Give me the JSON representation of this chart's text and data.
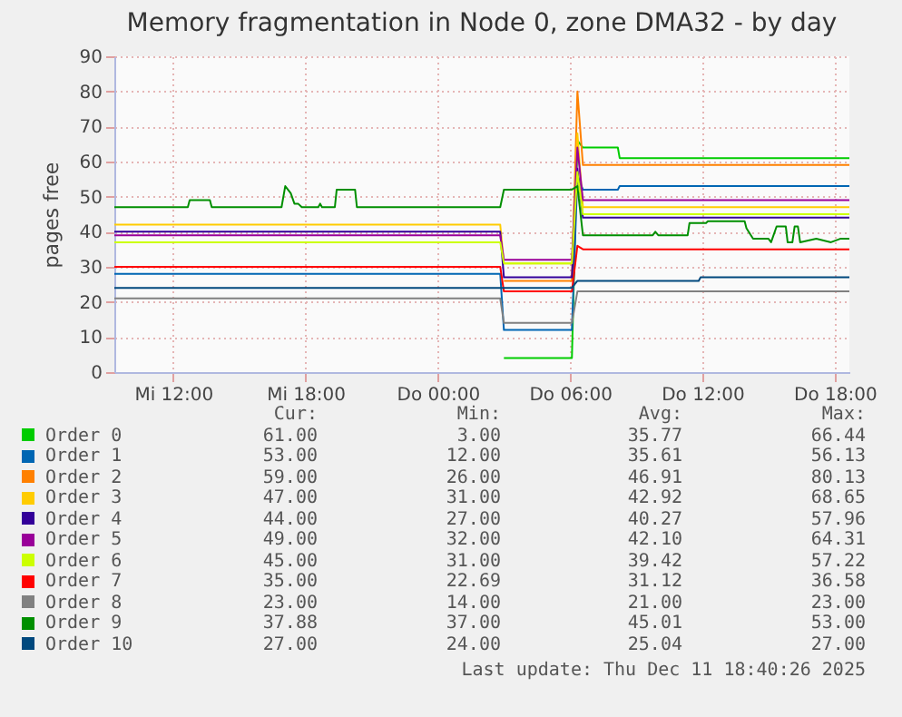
{
  "chart_data": {
    "type": "line",
    "title": "Memory fragmentation in Node 0, zone DMA32 - by day",
    "ylabel": "pages free",
    "xlim": [
      "2025-12-10T09:20",
      "2025-12-11T18:40"
    ],
    "xticks": [
      {
        "value": "2025-12-10T12:00",
        "label": "Mi 12:00"
      },
      {
        "value": "2025-12-10T18:00",
        "label": "Mi 18:00"
      },
      {
        "value": "2025-12-11T00:00",
        "label": "Do 00:00"
      },
      {
        "value": "2025-12-11T06:00",
        "label": "Do 06:00"
      },
      {
        "value": "2025-12-11T12:00",
        "label": "Do 12:00"
      },
      {
        "value": "2025-12-11T18:00",
        "label": "Do 18:00"
      }
    ],
    "ylim": [
      0,
      90
    ],
    "yticks": [
      0,
      10,
      20,
      30,
      40,
      50,
      60,
      70,
      80,
      90
    ],
    "grid": true,
    "legend": "bottom",
    "marker": "none",
    "line_style": "solid",
    "series": [
      {
        "name": "Order 0",
        "color": "#00cc00",
        "x": [
          "2025-12-11T03:00",
          "2025-12-11T06:05",
          "2025-12-11T06:20",
          "2025-12-11T06:35",
          "2025-12-11T08:10",
          "2025-12-11T08:15",
          "2025-12-11T18:40"
        ],
        "values": [
          4,
          4,
          66,
          64,
          64,
          61,
          61
        ]
      },
      {
        "name": "Order 1",
        "color": "#0066b3",
        "x": [
          "2025-12-10T09:20",
          "2025-12-11T02:50",
          "2025-12-11T03:00",
          "2025-12-11T06:05",
          "2025-12-11T06:20",
          "2025-12-11T06:35",
          "2025-12-11T08:10",
          "2025-12-11T08:15",
          "2025-12-11T18:40"
        ],
        "values": [
          28,
          28,
          12,
          12,
          56,
          52,
          52,
          53,
          53
        ]
      },
      {
        "name": "Order 2",
        "color": "#ff8000",
        "x": [
          "2025-12-11T03:00",
          "2025-12-11T06:05",
          "2025-12-11T06:20",
          "2025-12-11T06:35",
          "2025-12-11T18:40"
        ],
        "values": [
          26,
          26,
          80,
          59,
          59
        ]
      },
      {
        "name": "Order 3",
        "color": "#ffcc00",
        "x": [
          "2025-12-10T09:20",
          "2025-12-11T02:50",
          "2025-12-11T03:00",
          "2025-12-11T06:05",
          "2025-12-11T06:20",
          "2025-12-11T06:35",
          "2025-12-11T18:40"
        ],
        "values": [
          42,
          42,
          31,
          31,
          68,
          47,
          47
        ]
      },
      {
        "name": "Order 4",
        "color": "#330099",
        "x": [
          "2025-12-10T09:20",
          "2025-12-11T02:50",
          "2025-12-11T03:00",
          "2025-12-11T06:05",
          "2025-12-11T06:20",
          "2025-12-11T06:35",
          "2025-12-11T18:40"
        ],
        "values": [
          40,
          40,
          27,
          27,
          58,
          44,
          44
        ]
      },
      {
        "name": "Order 5",
        "color": "#990099",
        "x": [
          "2025-12-10T09:20",
          "2025-12-11T02:50",
          "2025-12-11T03:00",
          "2025-12-11T06:05",
          "2025-12-11T06:20",
          "2025-12-11T06:35",
          "2025-12-11T18:40"
        ],
        "values": [
          39,
          39,
          32,
          32,
          64,
          49,
          49
        ]
      },
      {
        "name": "Order 6",
        "color": "#ccff00",
        "x": [
          "2025-12-10T09:20",
          "2025-12-11T02:50",
          "2025-12-11T03:00",
          "2025-12-11T06:05",
          "2025-12-11T06:20",
          "2025-12-11T06:35",
          "2025-12-11T18:40"
        ],
        "values": [
          37,
          37,
          31,
          31,
          57,
          45,
          45
        ]
      },
      {
        "name": "Order 7",
        "color": "#ff0000",
        "x": [
          "2025-12-10T09:20",
          "2025-12-11T02:50",
          "2025-12-11T03:00",
          "2025-12-11T06:05",
          "2025-12-11T06:20",
          "2025-12-11T06:35",
          "2025-12-11T18:40"
        ],
        "values": [
          30,
          30,
          23,
          23,
          36,
          35,
          35
        ]
      },
      {
        "name": "Order 8",
        "color": "#808080",
        "x": [
          "2025-12-10T09:20",
          "2025-12-11T02:50",
          "2025-12-11T03:00",
          "2025-12-11T06:05",
          "2025-12-11T06:20",
          "2025-12-11T06:35",
          "2025-12-11T18:40"
        ],
        "values": [
          21,
          21,
          14,
          14,
          23,
          23,
          23
        ]
      },
      {
        "name": "Order 9",
        "color": "#008f00",
        "x": [
          "2025-12-10T09:20",
          "2025-12-10T12:40",
          "2025-12-10T12:45",
          "2025-12-10T13:40",
          "2025-12-10T13:45",
          "2025-12-10T16:55",
          "2025-12-10T17:05",
          "2025-12-10T17:20",
          "2025-12-10T17:30",
          "2025-12-10T17:40",
          "2025-12-10T17:50",
          "2025-12-10T18:35",
          "2025-12-10T18:40",
          "2025-12-10T18:45",
          "2025-12-10T19:20",
          "2025-12-10T19:25",
          "2025-12-10T20:15",
          "2025-12-10T20:20",
          "2025-12-11T02:50",
          "2025-12-11T03:00",
          "2025-12-11T06:05",
          "2025-12-11T06:20",
          "2025-12-11T06:35",
          "2025-12-11T09:45",
          "2025-12-11T09:52",
          "2025-12-11T10:00",
          "2025-12-11T11:20",
          "2025-12-11T11:25",
          "2025-12-11T12:10",
          "2025-12-11T12:15",
          "2025-12-11T13:55",
          "2025-12-11T14:00",
          "2025-12-11T14:18",
          "2025-12-11T15:00",
          "2025-12-11T15:07",
          "2025-12-11T15:22",
          "2025-12-11T15:47",
          "2025-12-11T15:52",
          "2025-12-11T16:05",
          "2025-12-11T16:11",
          "2025-12-11T16:20",
          "2025-12-11T16:26",
          "2025-12-11T17:10",
          "2025-12-11T17:50",
          "2025-12-11T18:15",
          "2025-12-11T18:40"
        ],
        "values": [
          47,
          47,
          49,
          49,
          47,
          47,
          53,
          51,
          48,
          48,
          47,
          47,
          48,
          47,
          47,
          52,
          52,
          47,
          47,
          52,
          52,
          53,
          39,
          39,
          40,
          39,
          39,
          42.5,
          42.5,
          43,
          43,
          41,
          38,
          38,
          37,
          41.5,
          41.5,
          37,
          37,
          41.5,
          41.5,
          37,
          38,
          37,
          38,
          38
        ]
      },
      {
        "name": "Order 10",
        "color": "#00487d",
        "x": [
          "2025-12-10T09:20",
          "2025-12-11T02:50",
          "2025-12-11T03:00",
          "2025-12-11T06:05",
          "2025-12-11T06:20",
          "2025-12-11T11:50",
          "2025-12-11T11:55",
          "2025-12-11T18:40"
        ],
        "values": [
          24,
          24,
          24,
          24,
          26,
          26,
          27,
          27
        ]
      }
    ],
    "annotations": [
      "Cur:",
      "Min:",
      "Avg:",
      "Max:",
      "61.00",
      "3.00",
      "35.77",
      "66.44",
      "53.00",
      "12.00",
      "35.61",
      "56.13",
      "59.00",
      "26.00",
      "46.91",
      "80.13",
      "47.00",
      "31.00",
      "42.92",
      "68.65",
      "44.00",
      "27.00",
      "40.27",
      "57.96",
      "49.00",
      "32.00",
      "42.10",
      "64.31",
      "45.00",
      "31.00",
      "39.42",
      "57.22",
      "35.00",
      "22.69",
      "31.12",
      "36.58",
      "23.00",
      "14.00",
      "21.00",
      "23.00",
      "37.88",
      "37.00",
      "45.01",
      "53.00",
      "27.00",
      "24.00",
      "25.04",
      "27.00",
      "Last update: Thu Dec 11 18:40:26 2025"
    ]
  }
}
